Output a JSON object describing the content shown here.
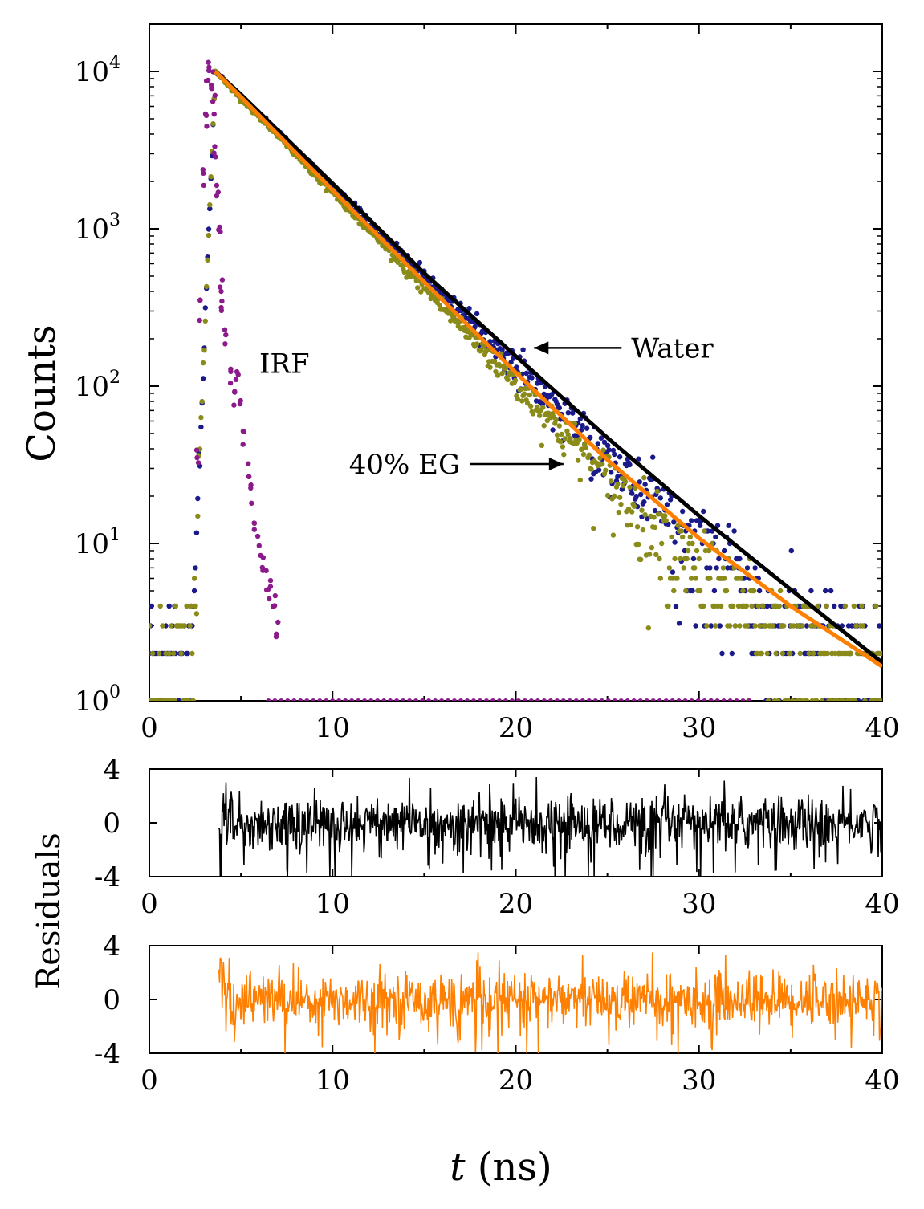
{
  "chart_data": [
    {
      "type": "scatter",
      "panel": "decay",
      "ylabel": "Counts",
      "xlabel": "",
      "xlim": [
        0,
        40
      ],
      "ylim": [
        1,
        20000
      ],
      "yscale": "log",
      "grid": false,
      "xticks": [
        "0",
        "10",
        "20",
        "30",
        "40"
      ],
      "yticks": [
        {
          "value": 1,
          "base": "10",
          "exp": "0"
        },
        {
          "value": 10,
          "base": "10",
          "exp": "1"
        },
        {
          "value": 100,
          "base": "10",
          "exp": "2"
        },
        {
          "value": 1000,
          "base": "10",
          "exp": "3"
        },
        {
          "value": 10000,
          "base": "10",
          "exp": "4"
        }
      ],
      "annotations": [
        {
          "text": "IRF",
          "x": 6.0,
          "y": 140
        },
        {
          "text": "Water",
          "x": 26.3,
          "y": 175,
          "arrow_to": [
            21.0,
            175
          ]
        },
        {
          "text": "40% EG",
          "x": 10.9,
          "y": 32,
          "arrow_to": [
            22.6,
            32
          ]
        }
      ],
      "series": [
        {
          "kind": "irf",
          "color": "#8b1a8b",
          "x": [
            2.6,
            2.8,
            3.0,
            3.1,
            3.2,
            3.3,
            3.4,
            3.5,
            3.6,
            3.7,
            3.8,
            3.9,
            4.0,
            4.2,
            4.4,
            4.6,
            4.8,
            5.0,
            5.2,
            5.4,
            5.6,
            5.8,
            6.0,
            6.2,
            6.4,
            6.6,
            6.8,
            7.0
          ],
          "y": [
            40,
            300,
            2000,
            5000,
            9000,
            10000,
            9000,
            6000,
            3500,
            1800,
            900,
            500,
            300,
            200,
            120,
            90,
            110,
            80,
            45,
            30,
            20,
            14,
            10,
            8,
            6,
            5,
            4,
            3
          ]
        },
        {
          "kind": "data",
          "color": "#1a1a8b",
          "tau_ns": 3.8,
          "peak_ns": 3.6,
          "peak_counts": 10000
        },
        {
          "kind": "data",
          "color": "#8b8b1a",
          "tau_ns": 3.6,
          "peak_ns": 3.6,
          "peak_counts": 10000
        },
        {
          "kind": "fit",
          "color": "#000000",
          "x": [
            3.6,
            5,
            10,
            15,
            20,
            25,
            30,
            35,
            40
          ],
          "y": [
            10000,
            7150,
            1940,
            523,
            155,
            47,
            15,
            5.1,
            1.75
          ]
        },
        {
          "kind": "fit",
          "color": "#ff8000",
          "x": [
            3.6,
            5,
            10,
            15,
            20,
            25,
            30,
            35,
            40
          ],
          "y": [
            10000,
            6900,
            1760,
            460,
            122,
            34,
            10.8,
            4.0,
            1.65
          ]
        }
      ]
    },
    {
      "type": "line",
      "panel": "residuals-water",
      "ylabel": "Residuals",
      "xlabel": "",
      "xlim": [
        0,
        40
      ],
      "ylim": [
        -4,
        4
      ],
      "xticks": [
        "0",
        "10",
        "20",
        "30",
        "40"
      ],
      "yticks": [
        "4",
        "0",
        "-4"
      ],
      "series": [
        {
          "color": "#000000",
          "x_start": 3.8,
          "x_end": 40,
          "noise_amplitude": 1.0
        }
      ]
    },
    {
      "type": "line",
      "panel": "residuals-eg",
      "ylabel": "",
      "xlabel": "t (ns)",
      "xlim": [
        0,
        40
      ],
      "ylim": [
        -4,
        4
      ],
      "xticks": [
        "0",
        "10",
        "20",
        "30",
        "40"
      ],
      "yticks": [
        "4",
        "0",
        "-4"
      ],
      "series": [
        {
          "color": "#ff8000",
          "x_start": 3.8,
          "x_end": 40,
          "noise_amplitude": 1.0
        }
      ]
    }
  ],
  "labels": {
    "counts": "Counts",
    "residuals": "Residuals",
    "t": "t",
    "ns": " (ns)"
  }
}
